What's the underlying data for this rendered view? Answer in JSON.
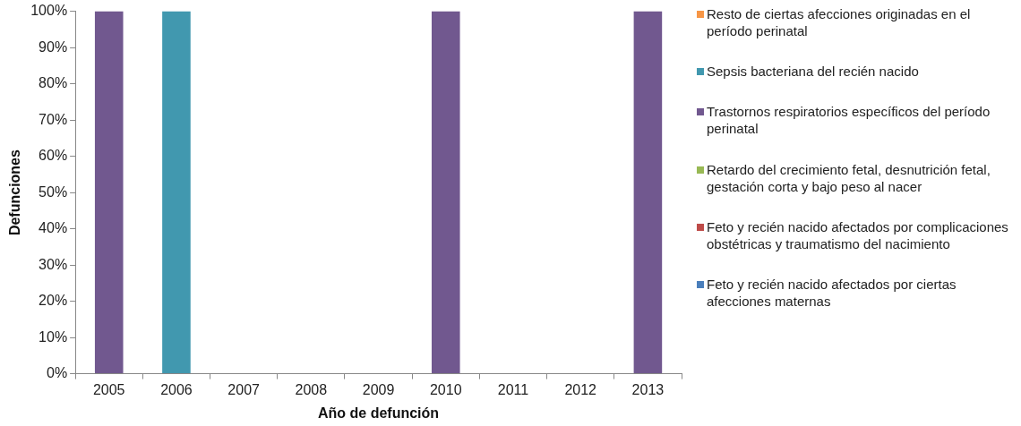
{
  "chart_data": {
    "type": "bar",
    "stacked": true,
    "xlabel": "Año de defunción",
    "ylabel": "Defunciones",
    "categories": [
      "2005",
      "2006",
      "2007",
      "2008",
      "2009",
      "2010",
      "2011",
      "2012",
      "2013"
    ],
    "series": [
      {
        "name": "Feto y recién nacido afectados por ciertas afecciones maternas",
        "color": "#4a7ebb",
        "values": [
          0,
          0,
          0,
          0,
          0,
          0,
          0,
          0,
          0
        ]
      },
      {
        "name": "Feto y recién nacido afectados por complicaciones obstétricas y traumatismo del nacimiento",
        "color": "#be4b48",
        "values": [
          0,
          0,
          0,
          0,
          0,
          0,
          0,
          0,
          0
        ]
      },
      {
        "name": "Retardo del crecimiento fetal, desnutrición fetal, gestación corta y bajo peso al nacer",
        "color": "#98b954",
        "values": [
          0,
          0,
          0,
          0,
          0,
          0,
          0,
          0,
          0
        ]
      },
      {
        "name": "Trastornos respiratorios específicos del período perinatal",
        "color": "#71588f",
        "values": [
          100,
          0,
          0,
          0,
          0,
          100,
          0,
          0,
          100
        ]
      },
      {
        "name": "Sepsis bacteriana del recién nacido",
        "color": "#4198af",
        "values": [
          0,
          100,
          0,
          0,
          0,
          0,
          0,
          0,
          0
        ]
      },
      {
        "name": "Resto de ciertas afecciones originadas en el período perinatal",
        "color": "#f79646",
        "values": [
          0,
          0,
          0,
          0,
          0,
          0,
          0,
          0,
          0
        ]
      }
    ],
    "ylim": [
      0,
      100
    ],
    "yticks": [
      {
        "value": 0,
        "label": "0%"
      },
      {
        "value": 10,
        "label": "10%"
      },
      {
        "value": 20,
        "label": "20%"
      },
      {
        "value": 30,
        "label": "30%"
      },
      {
        "value": 40,
        "label": "40%"
      },
      {
        "value": 50,
        "label": "50%"
      },
      {
        "value": 60,
        "label": "60%"
      },
      {
        "value": 70,
        "label": "70%"
      },
      {
        "value": 80,
        "label": "80%"
      },
      {
        "value": 90,
        "label": "90%"
      },
      {
        "value": 100,
        "label": "100%"
      }
    ],
    "grid": false,
    "legend": "right"
  }
}
